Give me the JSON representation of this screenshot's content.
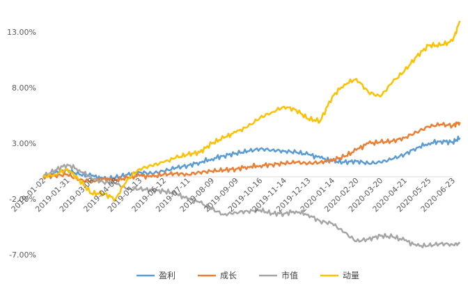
{
  "chart_data": {
    "type": "line",
    "title": "",
    "xlabel": "",
    "ylabel": "",
    "ylim": [
      -0.07,
      0.14
    ],
    "grid": false,
    "legend_position": "bottom",
    "yticks": [
      "13.00%",
      "8.00%",
      "3.00%",
      "-2.00%",
      "-7.00%"
    ],
    "ytick_values": [
      0.13,
      0.08,
      0.03,
      -0.02,
      -0.07
    ],
    "xticks": [
      "2019-01-02",
      "2019-01-31",
      "2019-03-08",
      "2019-04-08",
      "2019-05-13",
      "2019-06-12",
      "2019-07-11",
      "2019-08-09",
      "2019-09-09",
      "2019-10-16",
      "2019-11-14",
      "2019-12-13",
      "2020-01-14",
      "2020-02-20",
      "2020-03-20",
      "2020-04-21",
      "2020-05-25",
      "2020-06-23"
    ],
    "series": [
      {
        "name": "盈利",
        "color": "#5B9BD5",
        "x": [
          0,
          0.5,
          1,
          1.5,
          2,
          2.5,
          3,
          3.5,
          4,
          4.5,
          5,
          5.5,
          6,
          6.5,
          7,
          7.5,
          8,
          8.5,
          9,
          9.5,
          10,
          10.5,
          11,
          11.5,
          12,
          12.5,
          13,
          13.5,
          14,
          14.5,
          15,
          15.5,
          16,
          16.5,
          17,
          17.3
        ],
        "values": [
          0.0,
          0.004,
          0.006,
          0.002,
          0.001,
          -0.002,
          -0.001,
          0.002,
          0.004,
          0.003,
          0.005,
          0.008,
          0.01,
          0.013,
          0.016,
          0.019,
          0.021,
          0.023,
          0.025,
          0.024,
          0.023,
          0.022,
          0.02,
          0.017,
          0.014,
          0.013,
          0.014,
          0.012,
          0.013,
          0.016,
          0.02,
          0.026,
          0.03,
          0.032,
          0.031,
          0.035
        ]
      },
      {
        "name": "成长",
        "color": "#ED7D31",
        "x": [
          0,
          0.5,
          1,
          1.5,
          2,
          2.5,
          3,
          3.5,
          4,
          4.5,
          5,
          5.5,
          6,
          6.5,
          7,
          7.5,
          8,
          8.5,
          9,
          9.5,
          10,
          10.5,
          11,
          11.5,
          12,
          12.5,
          13,
          13.5,
          14,
          14.5,
          15,
          15.5,
          16,
          16.5,
          17,
          17.3
        ],
        "values": [
          0.0,
          0.001,
          0.002,
          -0.003,
          -0.004,
          -0.002,
          -0.003,
          -0.001,
          0.001,
          0.0,
          0.002,
          0.003,
          0.002,
          0.004,
          0.005,
          0.006,
          0.007,
          0.009,
          0.01,
          0.011,
          0.012,
          0.013,
          0.012,
          0.013,
          0.015,
          0.018,
          0.024,
          0.03,
          0.031,
          0.032,
          0.035,
          0.04,
          0.045,
          0.047,
          0.046,
          0.049
        ]
      },
      {
        "name": "市值",
        "color": "#A5A5A5",
        "x": [
          0,
          0.5,
          1,
          1.5,
          2,
          2.5,
          3,
          3.5,
          4,
          4.5,
          5,
          5.5,
          6,
          6.5,
          7,
          7.5,
          8,
          8.5,
          9,
          9.5,
          10,
          10.5,
          11,
          11.5,
          12,
          12.5,
          13,
          13.5,
          14,
          14.5,
          15,
          15.5,
          16,
          16.5,
          17,
          17.3
        ],
        "values": [
          0.0,
          0.006,
          0.011,
          0.006,
          -0.001,
          -0.005,
          -0.006,
          -0.011,
          -0.011,
          -0.012,
          -0.013,
          -0.015,
          -0.02,
          -0.023,
          -0.029,
          -0.034,
          -0.032,
          -0.031,
          -0.03,
          -0.033,
          -0.033,
          -0.031,
          -0.034,
          -0.04,
          -0.042,
          -0.05,
          -0.058,
          -0.056,
          -0.053,
          -0.054,
          -0.057,
          -0.062,
          -0.062,
          -0.06,
          -0.061,
          -0.06
        ]
      },
      {
        "name": "动量",
        "color": "#FFC000",
        "x": [
          0,
          0.5,
          1,
          1.5,
          2,
          2.5,
          3,
          3.5,
          4,
          4.5,
          5,
          5.5,
          6,
          6.5,
          7,
          7.5,
          8,
          8.5,
          9,
          9.5,
          10,
          10.5,
          11,
          11.5,
          12,
          12.5,
          13,
          13.5,
          14,
          14.5,
          15,
          15.5,
          16,
          16.5,
          17,
          17.3
        ],
        "values": [
          0.0,
          0.002,
          0.007,
          -0.003,
          -0.015,
          -0.015,
          -0.02,
          -0.002,
          0.007,
          0.01,
          0.013,
          0.017,
          0.02,
          0.022,
          0.03,
          0.035,
          0.04,
          0.045,
          0.053,
          0.058,
          0.063,
          0.06,
          0.052,
          0.05,
          0.072,
          0.083,
          0.088,
          0.076,
          0.072,
          0.085,
          0.095,
          0.108,
          0.118,
          0.118,
          0.122,
          0.14
        ]
      }
    ]
  }
}
